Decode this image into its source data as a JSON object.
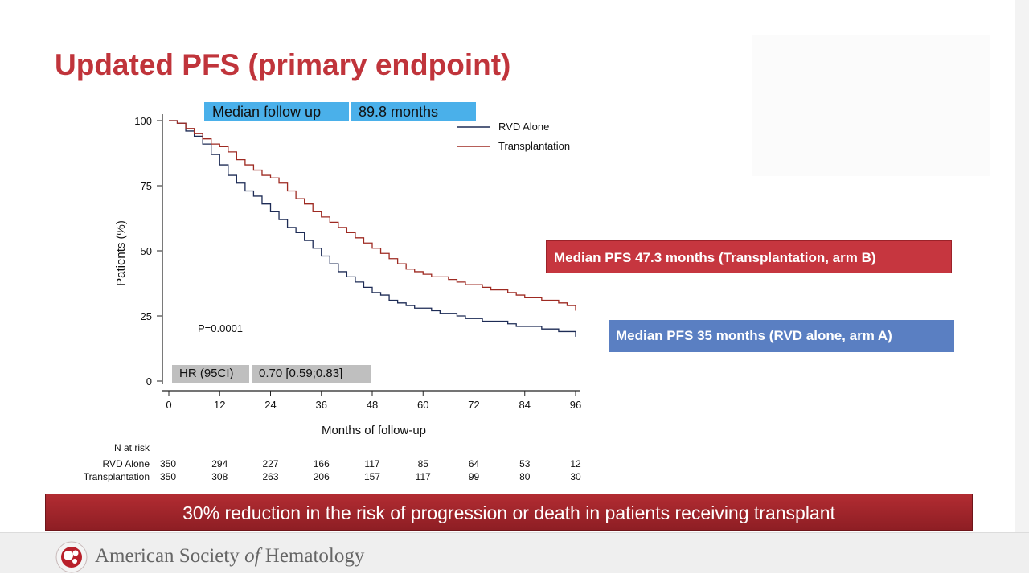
{
  "slide": {
    "title": "Updated PFS (primary endpoint)",
    "followup_label": "Median follow up",
    "followup_value": "89.8 months",
    "hr_label": "HR (95CI)",
    "hr_value": "0.70 [0.59;0.83]",
    "median_pfs_b": "Median PFS  47.3 months (Transplantation, arm B)",
    "median_pfs_a": "Median PFS   35 months (RVD alone, arm A)",
    "banner": "30% reduction in the risk of progression or death in patients receiving transplant",
    "footer": {
      "pre": "American Society ",
      "italic": "of",
      "post": " Hematology"
    }
  },
  "colors": {
    "rvd": "#1d2b55",
    "transplant": "#9e2a22",
    "title": "#c0343b",
    "followup_box": "#4ab0ea",
    "hr_box": "#bfbfbf",
    "pfs_b_box": "#c6363f",
    "pfs_a_box": "#5a7fc2"
  },
  "chart_data": {
    "type": "line",
    "title": "",
    "xlabel": "Months of follow-up",
    "ylabel": "Patients (%)",
    "xlim": [
      0,
      96
    ],
    "ylim": [
      0,
      100
    ],
    "xticks": [
      0,
      12,
      24,
      36,
      48,
      60,
      72,
      84,
      96
    ],
    "yticks": [
      0,
      25,
      50,
      75,
      100
    ],
    "legend_position": "top-right",
    "annotation": "P=0.0001",
    "series": [
      {
        "name": "RVD Alone",
        "x": [
          0,
          2,
          4,
          6,
          8,
          10,
          12,
          14,
          16,
          18,
          20,
          22,
          24,
          26,
          28,
          30,
          32,
          34,
          36,
          38,
          40,
          42,
          44,
          46,
          48,
          50,
          52,
          54,
          56,
          58,
          60,
          62,
          64,
          66,
          68,
          70,
          72,
          74,
          76,
          78,
          80,
          82,
          84,
          86,
          88,
          90,
          92,
          94,
          96
        ],
        "y": [
          100,
          99,
          96,
          94,
          91,
          87,
          83,
          79,
          76,
          73,
          71,
          68,
          65,
          62,
          59,
          57,
          54,
          51,
          48,
          45,
          42,
          40,
          38,
          36,
          34,
          33,
          31,
          30,
          29,
          28,
          28,
          27,
          26,
          26,
          25,
          24,
          24,
          23,
          23,
          23,
          22,
          21,
          21,
          21,
          20,
          20,
          19,
          19,
          17
        ]
      },
      {
        "name": "Transplantation",
        "x": [
          0,
          2,
          4,
          6,
          8,
          10,
          12,
          14,
          16,
          18,
          20,
          22,
          24,
          26,
          28,
          30,
          32,
          34,
          36,
          38,
          40,
          42,
          44,
          46,
          48,
          50,
          52,
          54,
          56,
          58,
          60,
          62,
          64,
          66,
          68,
          70,
          72,
          74,
          76,
          78,
          80,
          82,
          84,
          86,
          88,
          90,
          92,
          94,
          96
        ],
        "y": [
          100,
          99,
          97,
          95,
          93,
          91,
          90,
          88,
          85,
          83,
          81,
          79,
          78,
          76,
          73,
          70,
          68,
          65,
          63,
          61,
          59,
          57,
          55,
          53,
          51,
          49,
          47,
          45,
          43,
          42,
          41,
          40,
          40,
          39,
          38,
          37,
          37,
          36,
          35,
          35,
          34,
          33,
          32,
          32,
          31,
          31,
          30,
          29,
          27
        ]
      }
    ],
    "risk_table": {
      "title": "N at risk",
      "months": [
        0,
        12,
        24,
        36,
        48,
        60,
        72,
        84,
        96
      ],
      "rows": [
        {
          "label": "RVD Alone",
          "values": [
            "350",
            "294",
            "227",
            "166",
            "117",
            "85",
            "64",
            "53",
            "12"
          ]
        },
        {
          "label": "Transplantation",
          "values": [
            "350",
            "308",
            "263",
            "206",
            "157",
            "117",
            "99",
            "80",
            "30"
          ]
        }
      ]
    }
  }
}
